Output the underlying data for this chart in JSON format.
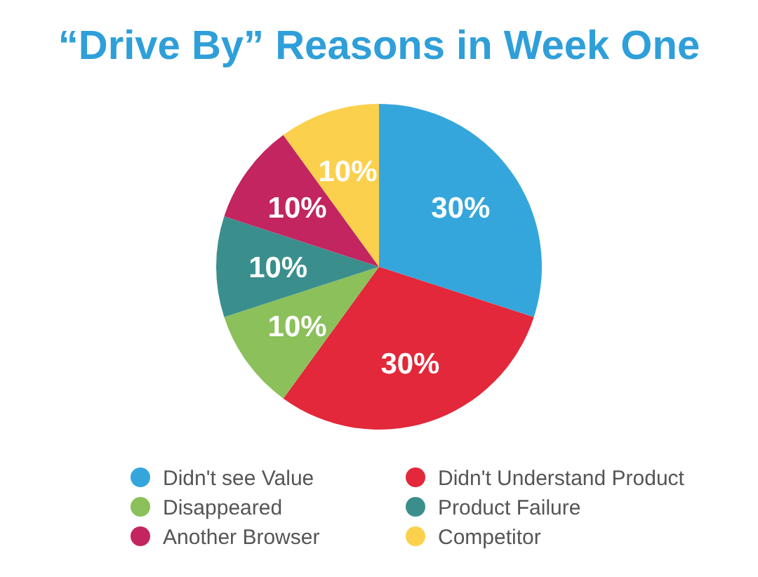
{
  "chart_data": {
    "type": "pie",
    "title": "“Drive By” Reasons in Week One",
    "categories": [
      "Didn't see Value",
      "Didn't Understand Product",
      "Disappeared",
      "Product Failure",
      "Another Browser",
      "Competitor"
    ],
    "values": [
      30,
      30,
      10,
      10,
      10,
      10
    ],
    "value_labels": [
      "30%",
      "30%",
      "10%",
      "10%",
      "10%",
      "10%"
    ],
    "colors": [
      "#35a6dc",
      "#e2283a",
      "#8bc05a",
      "#3a8f8d",
      "#c2255f",
      "#fbd04c"
    ],
    "legend": "bottom"
  }
}
